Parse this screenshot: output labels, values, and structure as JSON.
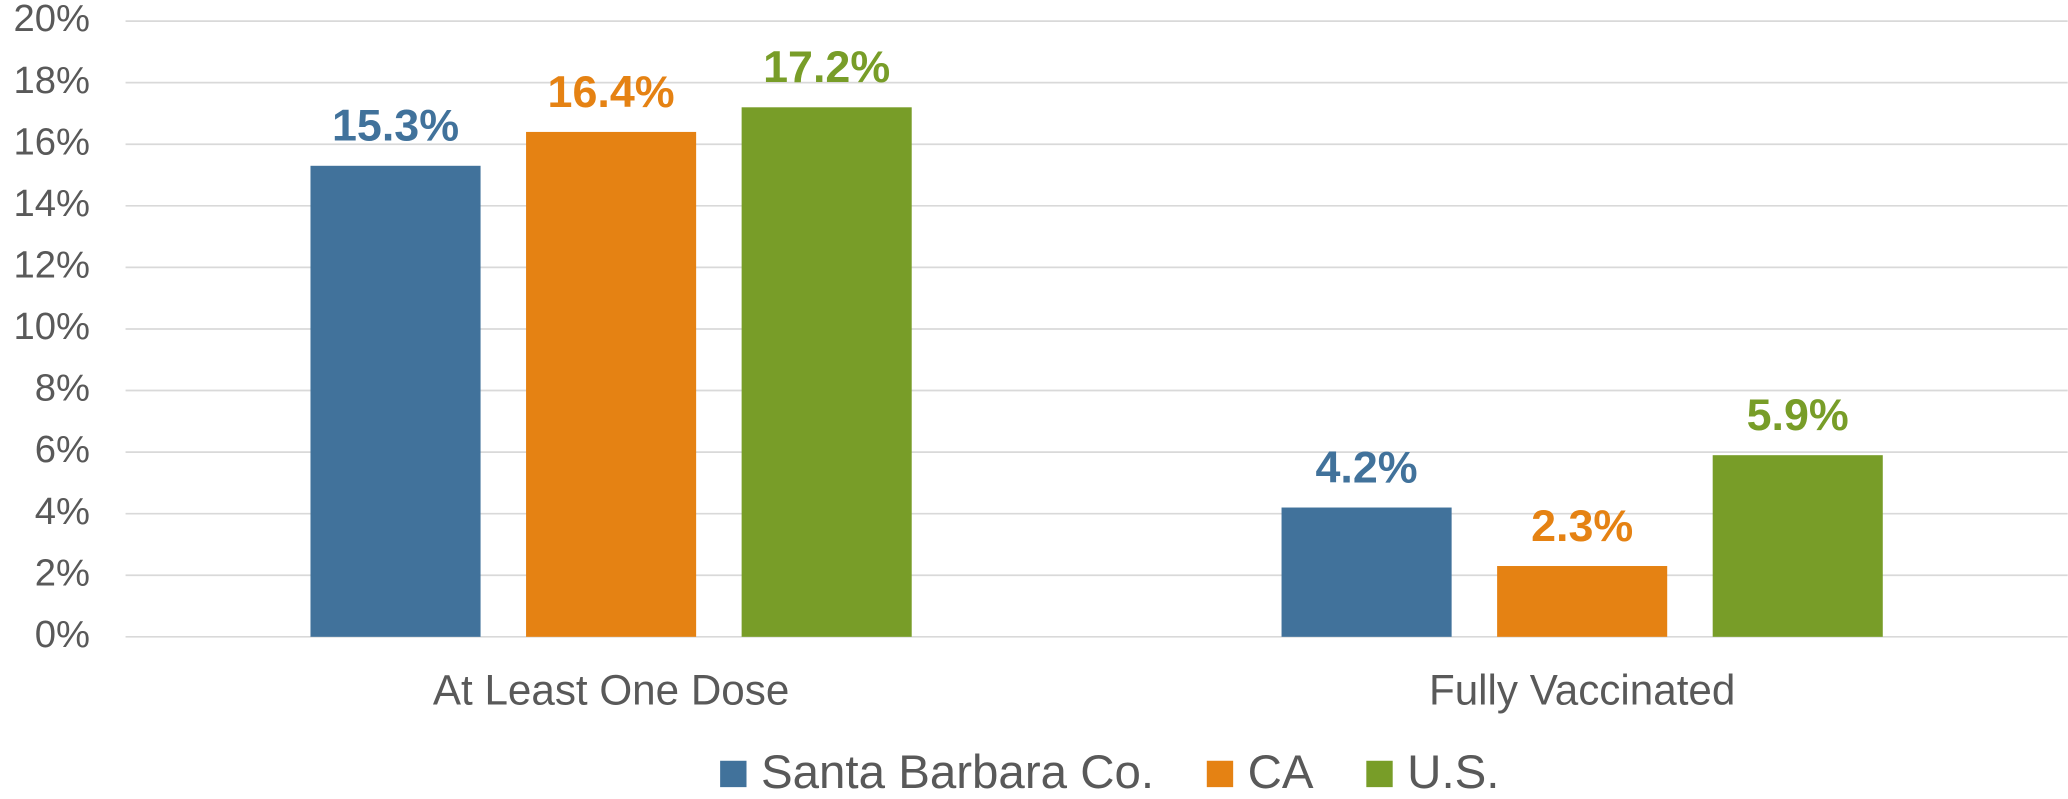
{
  "chart_data": {
    "type": "bar",
    "categories": [
      "At Least One Dose",
      "Fully Vaccinated"
    ],
    "series": [
      {
        "name": "Santa Barbara Co.",
        "color": "#41729b",
        "values": [
          15.3,
          4.2
        ],
        "value_labels": [
          "15.3%",
          "4.2%"
        ]
      },
      {
        "name": "CA",
        "color": "#e58213",
        "values": [
          16.4,
          2.3
        ],
        "value_labels": [
          "16.4%",
          "2.3%"
        ]
      },
      {
        "name": "U.S.",
        "color": "#789d28",
        "values": [
          17.2,
          5.9
        ],
        "value_labels": [
          "17.2%",
          "5.9%"
        ]
      }
    ],
    "ylim": [
      0,
      20
    ],
    "yticks": [
      {
        "value": 0,
        "label": "0%"
      },
      {
        "value": 2,
        "label": "2%"
      },
      {
        "value": 4,
        "label": "4%"
      },
      {
        "value": 6,
        "label": "6%"
      },
      {
        "value": 8,
        "label": "8%"
      },
      {
        "value": 10,
        "label": "10%"
      },
      {
        "value": 12,
        "label": "12%"
      },
      {
        "value": 14,
        "label": "14%"
      },
      {
        "value": 16,
        "label": "16%"
      },
      {
        "value": 18,
        "label": "18%"
      },
      {
        "value": 20,
        "label": "20%"
      }
    ],
    "grid": true,
    "legend": "bottom"
  }
}
